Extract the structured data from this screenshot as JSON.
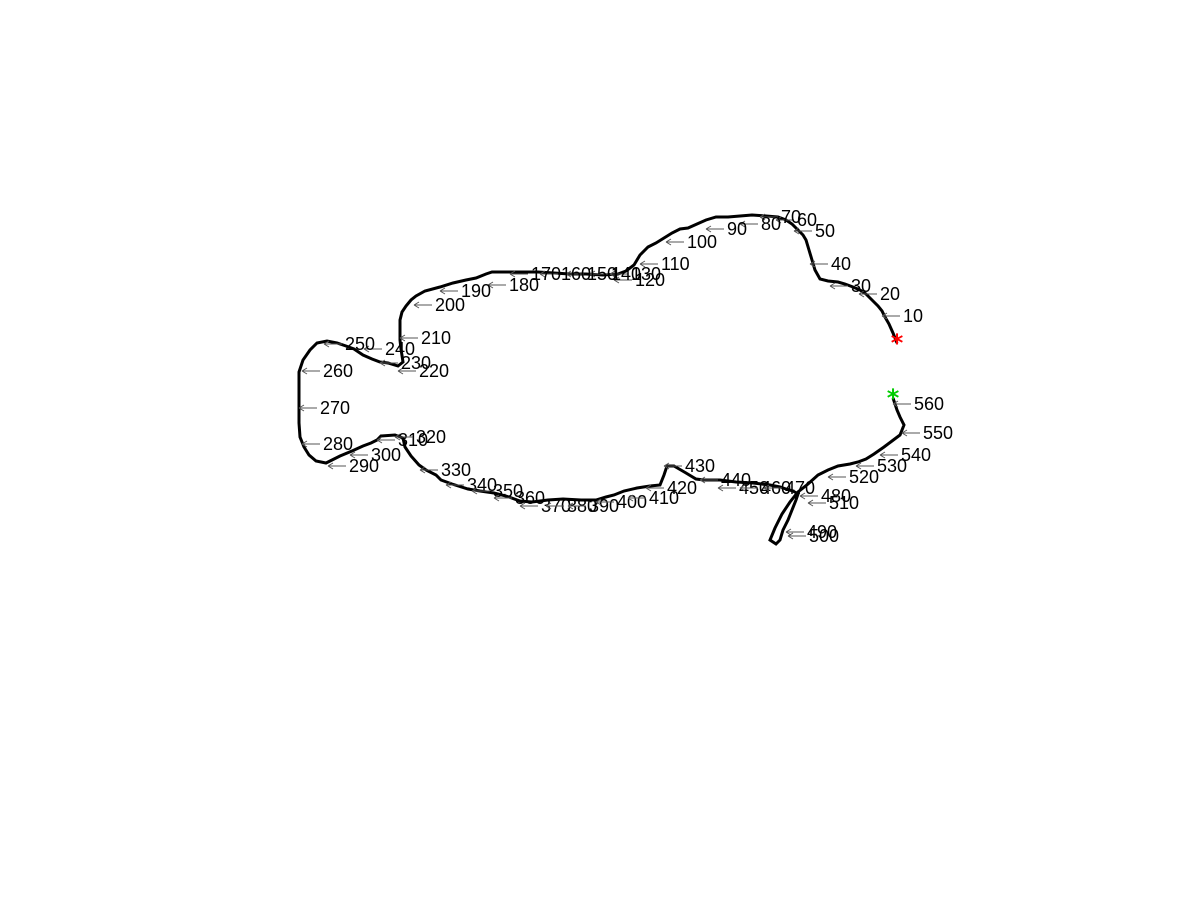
{
  "figure": {
    "contour_color": "#000000",
    "arrow_color": "#555555",
    "start_marker": {
      "symbol": "*",
      "color": "#ff0000"
    },
    "end_marker": {
      "symbol": "*",
      "color": "#00cc00"
    }
  },
  "labels": [
    "10",
    "20",
    "30",
    "40",
    "50",
    "60",
    "70",
    "80",
    "90",
    "100",
    "110",
    "120",
    "130",
    "140",
    "150",
    "160",
    "170",
    "180",
    "190",
    "200",
    "210",
    "220",
    "230",
    "240",
    "250",
    "260",
    "270",
    "280",
    "290",
    "300",
    "310",
    "320",
    "330",
    "340",
    "350",
    "360",
    "370",
    "380",
    "390",
    "400",
    "410",
    "420",
    "430",
    "440",
    "450",
    "460",
    "470",
    "480",
    "490",
    "500",
    "510",
    "520",
    "530",
    "540",
    "550",
    "560"
  ]
}
